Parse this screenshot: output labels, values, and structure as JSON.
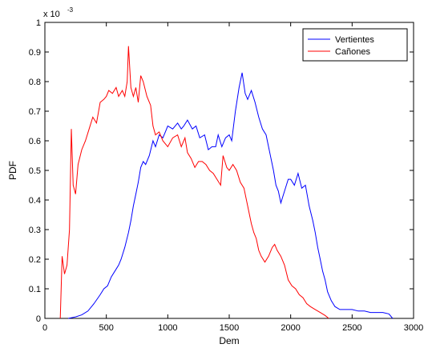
{
  "chart_data": {
    "type": "line",
    "title": "",
    "xlabel": "Dem",
    "ylabel": "PDF",
    "xlim": [
      0,
      3000
    ],
    "ylim": [
      0,
      0.001
    ],
    "y_exponent_label": "x 10",
    "y_exponent_power": "-3",
    "x_ticks": [
      0,
      500,
      1000,
      1500,
      2000,
      2500,
      3000
    ],
    "x_tick_labels": [
      "0",
      "500",
      "1000",
      "1500",
      "2000",
      "2500",
      "3000"
    ],
    "y_ticks": [
      0,
      0.0001,
      0.0002,
      0.0003,
      0.0004,
      0.0005,
      0.0006,
      0.0007,
      0.0008,
      0.0009,
      0.001
    ],
    "y_tick_labels": [
      "0",
      "0.1",
      "0.2",
      "0.3",
      "0.4",
      "0.5",
      "0.6",
      "0.7",
      "0.8",
      "0.9",
      "1"
    ],
    "grid": false,
    "legend": {
      "placement": "top-right"
    },
    "series": [
      {
        "name": "Vertientes",
        "color": "#0000ff",
        "points": [
          [
            190,
            0
          ],
          [
            250,
            5e-06
          ],
          [
            300,
            1.2e-05
          ],
          [
            350,
            2.5e-05
          ],
          [
            400,
            5e-05
          ],
          [
            450,
            8e-05
          ],
          [
            480,
            0.0001
          ],
          [
            510,
            0.00011
          ],
          [
            540,
            0.00014
          ],
          [
            570,
            0.00016
          ],
          [
            600,
            0.00018
          ],
          [
            620,
            0.0002
          ],
          [
            650,
            0.00024
          ],
          [
            680,
            0.00029
          ],
          [
            700,
            0.00033
          ],
          [
            720,
            0.00038
          ],
          [
            740,
            0.00042
          ],
          [
            760,
            0.00046
          ],
          [
            780,
            0.00051
          ],
          [
            800,
            0.00053
          ],
          [
            820,
            0.00052
          ],
          [
            850,
            0.00055
          ],
          [
            880,
            0.0006
          ],
          [
            900,
            0.00058
          ],
          [
            930,
            0.00062
          ],
          [
            960,
            0.00061
          ],
          [
            980,
            0.00063
          ],
          [
            1000,
            0.00065
          ],
          [
            1040,
            0.00064
          ],
          [
            1080,
            0.00066
          ],
          [
            1110,
            0.00064
          ],
          [
            1130,
            0.00065
          ],
          [
            1160,
            0.00067
          ],
          [
            1200,
            0.00064
          ],
          [
            1230,
            0.00065
          ],
          [
            1260,
            0.00061
          ],
          [
            1300,
            0.00062
          ],
          [
            1330,
            0.00057
          ],
          [
            1360,
            0.00058
          ],
          [
            1390,
            0.00058
          ],
          [
            1410,
            0.00062
          ],
          [
            1440,
            0.00058
          ],
          [
            1470,
            0.00061
          ],
          [
            1500,
            0.00062
          ],
          [
            1520,
            0.0006
          ],
          [
            1550,
            0.0007
          ],
          [
            1580,
            0.00078
          ],
          [
            1605,
            0.00083
          ],
          [
            1630,
            0.00076
          ],
          [
            1650,
            0.00074
          ],
          [
            1680,
            0.00077
          ],
          [
            1710,
            0.00073
          ],
          [
            1740,
            0.00068
          ],
          [
            1770,
            0.00064
          ],
          [
            1800,
            0.00062
          ],
          [
            1830,
            0.00056
          ],
          [
            1860,
            0.0005
          ],
          [
            1880,
            0.00045
          ],
          [
            1900,
            0.00043
          ],
          [
            1920,
            0.00039
          ],
          [
            1950,
            0.00043
          ],
          [
            1980,
            0.00047
          ],
          [
            2000,
            0.00047
          ],
          [
            2030,
            0.00045
          ],
          [
            2060,
            0.00049
          ],
          [
            2090,
            0.00044
          ],
          [
            2120,
            0.00045
          ],
          [
            2150,
            0.00038
          ],
          [
            2180,
            0.00033
          ],
          [
            2200,
            0.00029
          ],
          [
            2220,
            0.00024
          ],
          [
            2240,
            0.0002
          ],
          [
            2260,
            0.00016
          ],
          [
            2280,
            0.00013
          ],
          [
            2300,
            9e-05
          ],
          [
            2330,
            6e-05
          ],
          [
            2360,
            4e-05
          ],
          [
            2400,
            3e-05
          ],
          [
            2450,
            3e-05
          ],
          [
            2500,
            3e-05
          ],
          [
            2550,
            2.5e-05
          ],
          [
            2600,
            2.5e-05
          ],
          [
            2650,
            2e-05
          ],
          [
            2700,
            2e-05
          ],
          [
            2750,
            2e-05
          ],
          [
            2800,
            1.5e-05
          ],
          [
            2830,
            0
          ]
        ]
      },
      {
        "name": "Cañones",
        "color": "#ff0000",
        "points": [
          [
            125,
            0
          ],
          [
            140,
            0.00021
          ],
          [
            160,
            0.00015
          ],
          [
            180,
            0.00018
          ],
          [
            200,
            0.0003
          ],
          [
            215,
            0.00064
          ],
          [
            230,
            0.00045
          ],
          [
            250,
            0.00042
          ],
          [
            270,
            0.00052
          ],
          [
            300,
            0.00057
          ],
          [
            330,
            0.0006
          ],
          [
            360,
            0.00064
          ],
          [
            390,
            0.00068
          ],
          [
            420,
            0.00066
          ],
          [
            450,
            0.00073
          ],
          [
            480,
            0.00074
          ],
          [
            500,
            0.00075
          ],
          [
            520,
            0.00077
          ],
          [
            550,
            0.00076
          ],
          [
            580,
            0.00078
          ],
          [
            600,
            0.00075
          ],
          [
            630,
            0.00077
          ],
          [
            650,
            0.00075
          ],
          [
            670,
            0.0008
          ],
          [
            680,
            0.00092
          ],
          [
            700,
            0.00078
          ],
          [
            720,
            0.00075
          ],
          [
            740,
            0.00078
          ],
          [
            760,
            0.00073
          ],
          [
            780,
            0.00082
          ],
          [
            800,
            0.0008
          ],
          [
            830,
            0.00075
          ],
          [
            860,
            0.00072
          ],
          [
            880,
            0.00065
          ],
          [
            900,
            0.00062
          ],
          [
            930,
            0.00063
          ],
          [
            960,
            0.0006
          ],
          [
            1000,
            0.00058
          ],
          [
            1040,
            0.00061
          ],
          [
            1080,
            0.00062
          ],
          [
            1110,
            0.00058
          ],
          [
            1140,
            0.00061
          ],
          [
            1160,
            0.00056
          ],
          [
            1190,
            0.00054
          ],
          [
            1220,
            0.00051
          ],
          [
            1250,
            0.00053
          ],
          [
            1280,
            0.00053
          ],
          [
            1310,
            0.00052
          ],
          [
            1340,
            0.0005
          ],
          [
            1370,
            0.00049
          ],
          [
            1400,
            0.00047
          ],
          [
            1430,
            0.00045
          ],
          [
            1450,
            0.00055
          ],
          [
            1480,
            0.00051
          ],
          [
            1500,
            0.0005
          ],
          [
            1530,
            0.00052
          ],
          [
            1560,
            0.0005
          ],
          [
            1590,
            0.00046
          ],
          [
            1620,
            0.00044
          ],
          [
            1650,
            0.00038
          ],
          [
            1680,
            0.00032
          ],
          [
            1700,
            0.00029
          ],
          [
            1720,
            0.00027
          ],
          [
            1740,
            0.00023
          ],
          [
            1760,
            0.00021
          ],
          [
            1790,
            0.00019
          ],
          [
            1820,
            0.00021
          ],
          [
            1850,
            0.00024
          ],
          [
            1870,
            0.00025
          ],
          [
            1890,
            0.00023
          ],
          [
            1920,
            0.00021
          ],
          [
            1950,
            0.00018
          ],
          [
            1980,
            0.00013
          ],
          [
            2010,
            0.00011
          ],
          [
            2040,
            0.0001
          ],
          [
            2070,
            8e-05
          ],
          [
            2100,
            7e-05
          ],
          [
            2130,
            5e-05
          ],
          [
            2160,
            4e-05
          ],
          [
            2200,
            3e-05
          ],
          [
            2240,
            2e-05
          ],
          [
            2280,
            1e-05
          ],
          [
            2310,
            0
          ]
        ]
      }
    ]
  }
}
